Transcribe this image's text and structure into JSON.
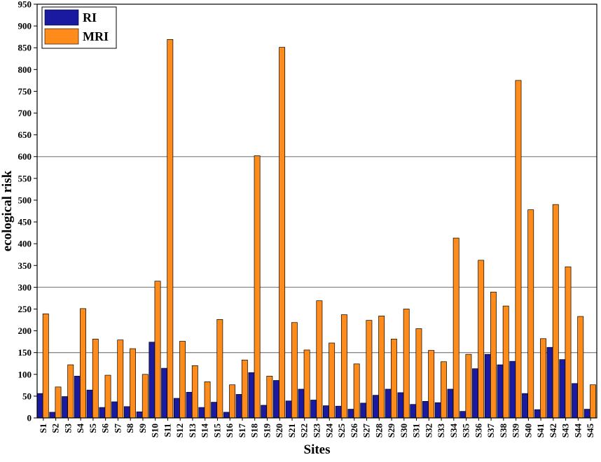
{
  "chart_data": {
    "type": "bar",
    "xlabel": "Sites",
    "ylabel": "ecological risk",
    "ylim": [
      0,
      950
    ],
    "ytick_step": 50,
    "reference_lines": [
      150,
      300,
      600
    ],
    "legend_placement": "top-left",
    "categories": [
      "S1",
      "S2",
      "S3",
      "S4",
      "S5",
      "S6",
      "S7",
      "S8",
      "S9",
      "S10",
      "S11",
      "S12",
      "S13",
      "S14",
      "S15",
      "S16",
      "S17",
      "S18",
      "S19",
      "S20",
      "S21",
      "S22",
      "S23",
      "S24",
      "S25",
      "S26",
      "S27",
      "S28",
      "S29",
      "S30",
      "S31",
      "S32",
      "S33",
      "S34",
      "S35",
      "S36",
      "S37",
      "S38",
      "S39",
      "S40",
      "S41",
      "S42",
      "S43",
      "S44",
      "S45"
    ],
    "series": [
      {
        "name": "RI",
        "color": "#1a1aa0",
        "values": [
          56,
          13,
          49,
          96,
          64,
          24,
          37,
          26,
          14,
          174,
          114,
          45,
          59,
          24,
          36,
          13,
          54,
          104,
          29,
          86,
          39,
          66,
          41,
          28,
          27,
          20,
          34,
          52,
          66,
          58,
          31,
          38,
          35,
          66,
          15,
          113,
          146,
          122,
          130,
          56,
          19,
          162,
          134,
          79,
          20
        ]
      },
      {
        "name": "MRI",
        "color": "#ff8c1a",
        "values": [
          239,
          71,
          122,
          251,
          181,
          98,
          179,
          159,
          100,
          314,
          869,
          176,
          120,
          83,
          226,
          76,
          133,
          602,
          96,
          851,
          219,
          156,
          269,
          172,
          237,
          124,
          224,
          234,
          181,
          250,
          205,
          155,
          129,
          413,
          146,
          362,
          289,
          257,
          775,
          478,
          182,
          490,
          347,
          233,
          76
        ]
      }
    ]
  }
}
